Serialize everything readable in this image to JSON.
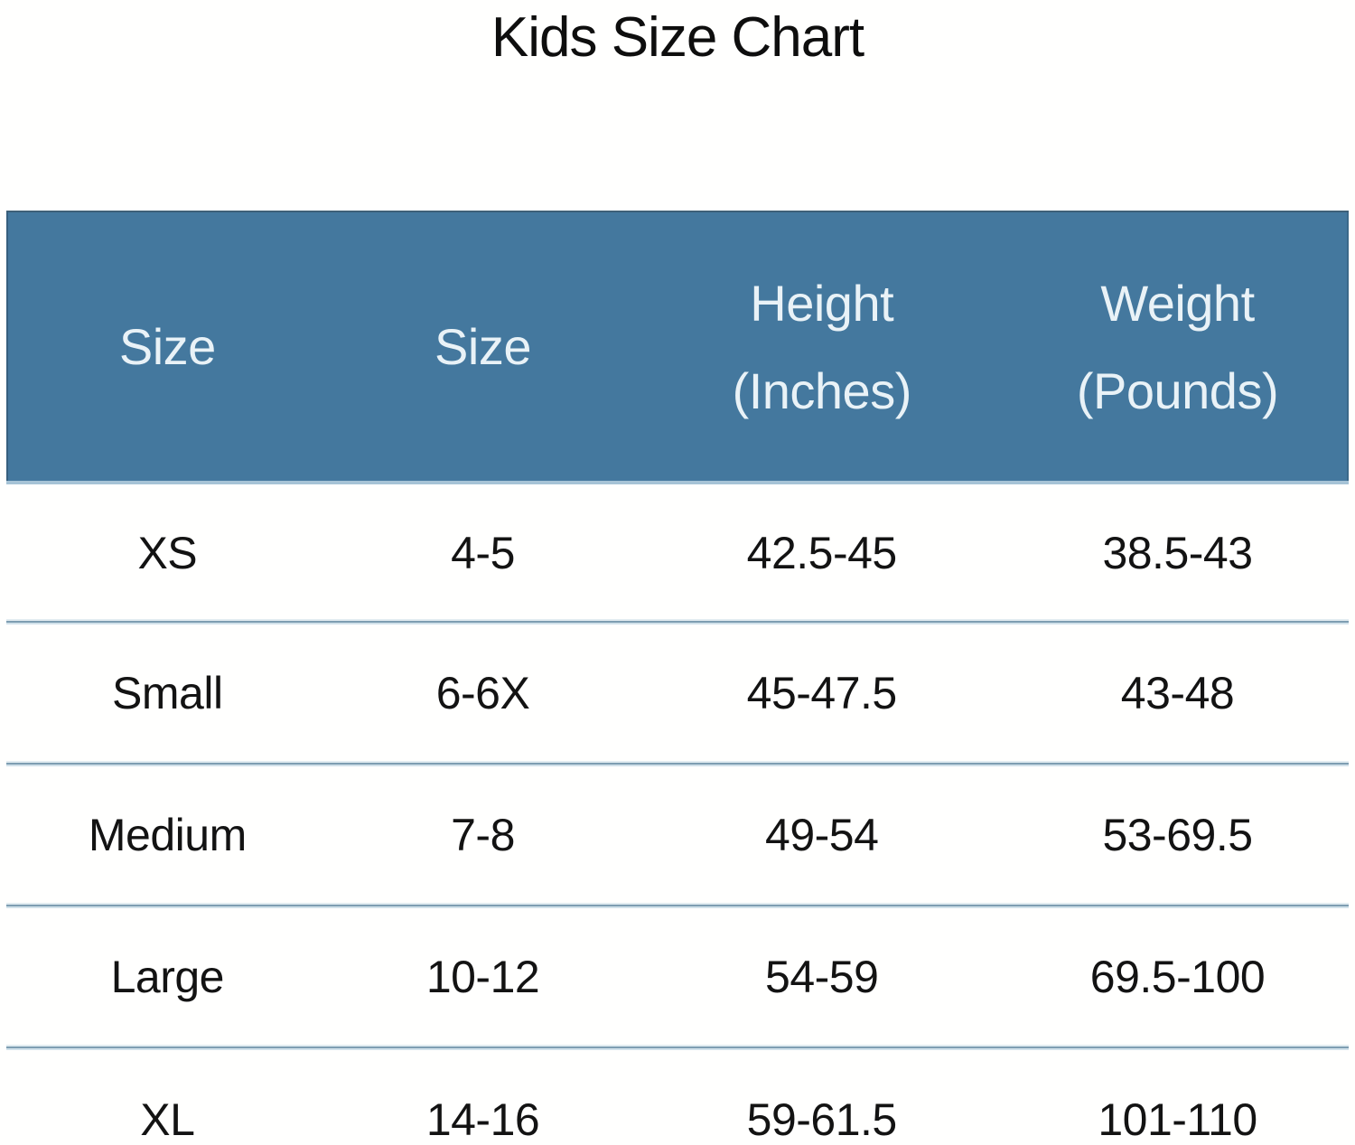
{
  "title": "Kids Size Chart",
  "chart_data": {
    "type": "table",
    "title": "Kids Size Chart",
    "columns": [
      {
        "label": "Size",
        "lines": [
          "Size"
        ]
      },
      {
        "label": "Size",
        "lines": [
          "Size"
        ]
      },
      {
        "label": "Height (Inches)",
        "lines": [
          "Height",
          "(Inches)"
        ]
      },
      {
        "label": "Weight (Pounds)",
        "lines": [
          "Weight",
          "(Pounds)"
        ]
      }
    ],
    "rows": [
      [
        "XS",
        "4-5",
        "42.5-45",
        "38.5-43"
      ],
      [
        "Small",
        "6-6X",
        "45-47.5",
        "43-48"
      ],
      [
        "Medium",
        "7-8",
        "49-54",
        "53-69.5"
      ],
      [
        "Large",
        "10-12",
        "54-59",
        "69.5-100"
      ],
      [
        "XL",
        "14-16",
        "59-61.5",
        "101-110"
      ]
    ]
  },
  "colors": {
    "header_background": "#44789E",
    "header_text": "#E9F2F7",
    "body_text": "#131313",
    "divider_line": "#7E9EB2",
    "page_background": "#FFFFFE"
  }
}
